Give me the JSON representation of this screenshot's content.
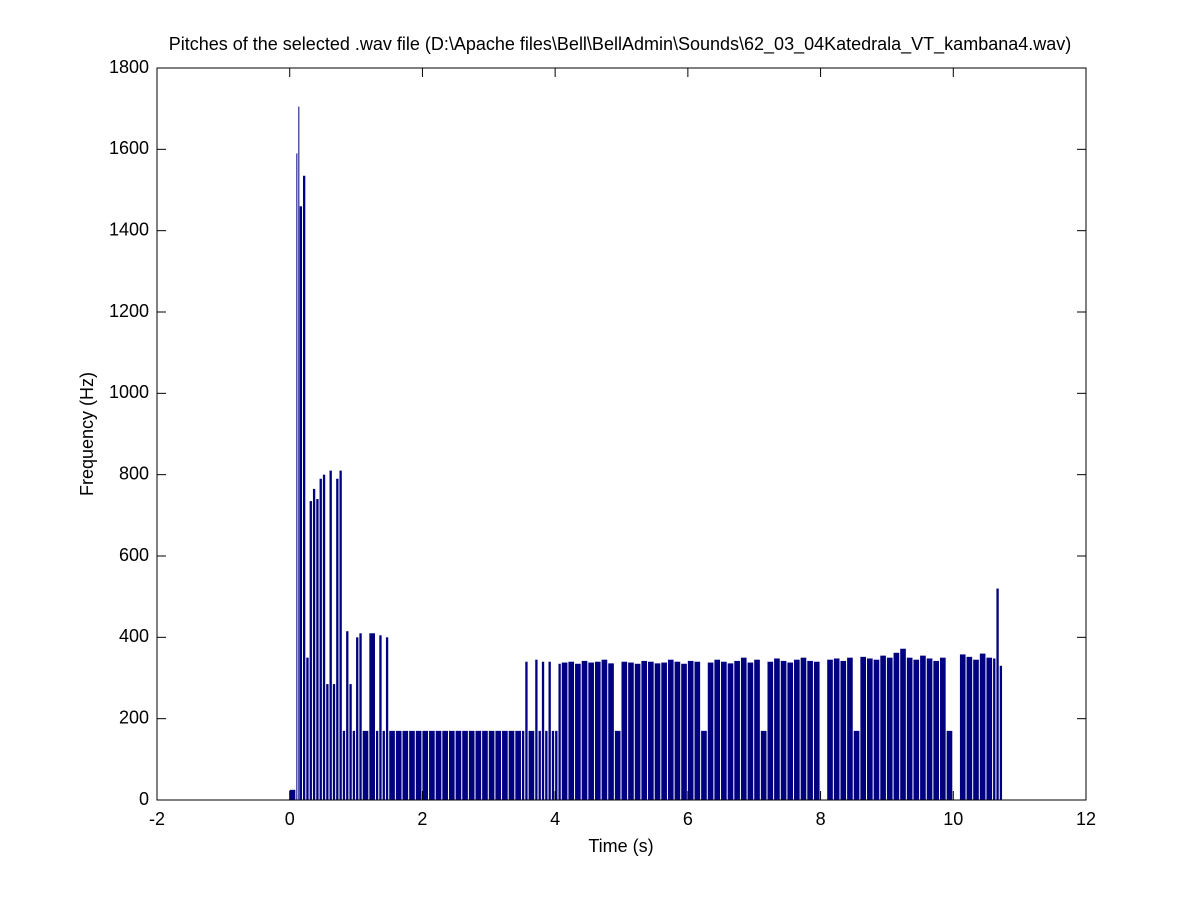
{
  "chart_data": {
    "type": "bar",
    "title": "Pitches of the selected .wav file (D:\\Apache files\\Bell\\BellAdmin\\Sounds\\62_03_04Katedrala_VT_kambana4.wav)",
    "x_label": "Time (s)",
    "y_label": "Frequency (Hz)",
    "color": "#000080",
    "xlim": [
      -2,
      12
    ],
    "xticks": [
      -2,
      0,
      2,
      4,
      6,
      8,
      10,
      12
    ],
    "ylim": [
      0,
      1800
    ],
    "yticks": [
      0,
      200,
      400,
      600,
      800,
      1000,
      1200,
      1400,
      1600,
      1800
    ],
    "x": [
      0.0,
      0.1,
      0.13,
      0.15,
      0.2,
      0.25,
      0.3,
      0.35,
      0.4,
      0.45,
      0.5,
      0.55,
      0.6,
      0.65,
      0.7,
      0.75,
      0.8,
      0.85,
      0.9,
      0.95,
      1.0,
      1.05,
      1.1,
      1.2,
      1.3,
      1.35,
      1.4,
      1.45,
      1.5,
      1.6,
      1.7,
      1.8,
      1.9,
      2.0,
      2.1,
      2.2,
      2.3,
      2.4,
      2.5,
      2.6,
      2.7,
      2.8,
      2.9,
      3.0,
      3.1,
      3.2,
      3.3,
      3.4,
      3.5,
      3.55,
      3.6,
      3.7,
      3.75,
      3.8,
      3.85,
      3.9,
      3.95,
      4.0,
      4.05,
      4.1,
      4.2,
      4.3,
      4.4,
      4.5,
      4.6,
      4.7,
      4.8,
      4.9,
      5.0,
      5.1,
      5.2,
      5.3,
      5.4,
      5.5,
      5.6,
      5.7,
      5.8,
      5.9,
      6.0,
      6.1,
      6.2,
      6.3,
      6.4,
      6.5,
      6.6,
      6.7,
      6.8,
      6.9,
      7.0,
      7.1,
      7.2,
      7.3,
      7.4,
      7.5,
      7.6,
      7.7,
      7.8,
      7.9,
      8.0,
      8.1,
      8.2,
      8.3,
      8.4,
      8.5,
      8.6,
      8.7,
      8.8,
      8.9,
      9.0,
      9.1,
      9.2,
      9.3,
      9.4,
      9.5,
      9.6,
      9.7,
      9.8,
      9.9,
      10.0,
      10.1,
      10.2,
      10.3,
      10.4,
      10.5,
      10.6,
      10.65,
      10.7
    ],
    "values": [
      25,
      1590,
      1705,
      1460,
      1535,
      350,
      735,
      765,
      740,
      790,
      800,
      285,
      810,
      285,
      790,
      810,
      170,
      415,
      285,
      170,
      400,
      410,
      170,
      410,
      170,
      405,
      170,
      400,
      170,
      170,
      170,
      170,
      170,
      170,
      170,
      170,
      170,
      170,
      170,
      170,
      170,
      170,
      170,
      170,
      170,
      170,
      170,
      170,
      170,
      340,
      170,
      345,
      170,
      340,
      170,
      340,
      170,
      170,
      335,
      338,
      340,
      335,
      342,
      338,
      340,
      345,
      336,
      170,
      340,
      338,
      335,
      342,
      340,
      336,
      338,
      345,
      340,
      335,
      342,
      340,
      170,
      338,
      345,
      340,
      336,
      342,
      350,
      338,
      345,
      170,
      340,
      348,
      342,
      338,
      345,
      350,
      342,
      340,
      0,
      345,
      348,
      342,
      350,
      170,
      352,
      348,
      345,
      355,
      350,
      362,
      372,
      350,
      345,
      355,
      348,
      342,
      350,
      170,
      0,
      358,
      352,
      345,
      360,
      350,
      348,
      520,
      330
    ]
  }
}
